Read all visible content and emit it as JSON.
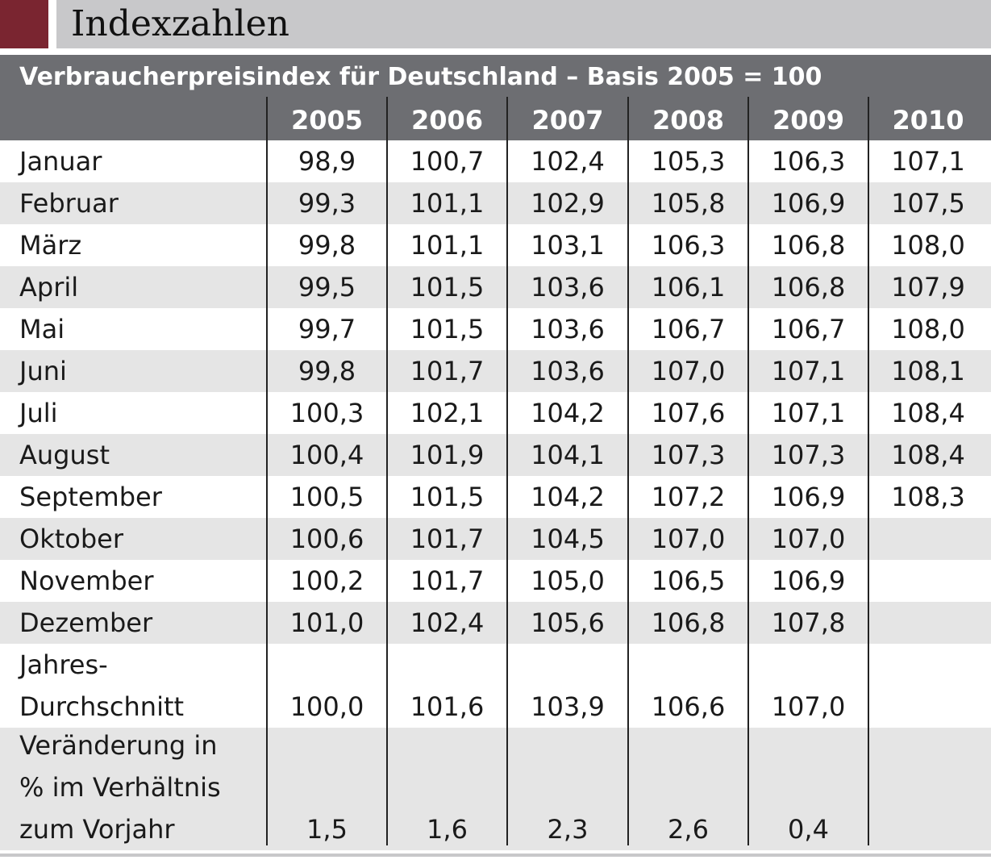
{
  "title": "Indexzahlen",
  "colors": {
    "accent": "#7a2530",
    "title_bar": "#c8c8ca",
    "header": "#6d6e72",
    "row_shade": "#e5e5e5"
  },
  "table": {
    "caption": "Verbraucherpreisindex für Deutschland – Basis 2005 = 100",
    "years": [
      "2005",
      "2006",
      "2007",
      "2008",
      "2009",
      "2010"
    ],
    "rows": [
      {
        "label": "Januar",
        "values": [
          "98,9",
          "100,7",
          "102,4",
          "105,3",
          "106,3",
          "107,1"
        ]
      },
      {
        "label": "Februar",
        "values": [
          "99,3",
          "101,1",
          "102,9",
          "105,8",
          "106,9",
          "107,5"
        ]
      },
      {
        "label": "März",
        "values": [
          "99,8",
          "101,1",
          "103,1",
          "106,3",
          "106,8",
          "108,0"
        ]
      },
      {
        "label": "April",
        "values": [
          "99,5",
          "101,5",
          "103,6",
          "106,1",
          "106,8",
          "107,9"
        ]
      },
      {
        "label": "Mai",
        "values": [
          "99,7",
          "101,5",
          "103,6",
          "106,7",
          "106,7",
          "108,0"
        ]
      },
      {
        "label": "Juni",
        "values": [
          "99,8",
          "101,7",
          "103,6",
          "107,0",
          "107,1",
          "108,1"
        ]
      },
      {
        "label": "Juli",
        "values": [
          "100,3",
          "102,1",
          "104,2",
          "107,6",
          "107,1",
          "108,4"
        ]
      },
      {
        "label": "August",
        "values": [
          "100,4",
          "101,9",
          "104,1",
          "107,3",
          "107,3",
          "108,4"
        ]
      },
      {
        "label": "September",
        "values": [
          "100,5",
          "101,5",
          "104,2",
          "107,2",
          "106,9",
          "108,3"
        ]
      },
      {
        "label": "Oktober",
        "values": [
          "100,6",
          "101,7",
          "104,5",
          "107,0",
          "107,0",
          ""
        ]
      },
      {
        "label": "November",
        "values": [
          "100,2",
          "101,7",
          "105,0",
          "106,5",
          "106,9",
          ""
        ]
      },
      {
        "label": "Dezember",
        "values": [
          "101,0",
          "102,4",
          "105,6",
          "106,8",
          "107,8",
          ""
        ]
      },
      {
        "label": "Jahres-\nDurchschnitt",
        "values": [
          "100,0",
          "101,6",
          "103,9",
          "106,6",
          "107,0",
          ""
        ]
      },
      {
        "label": "Veränderung in\n% im Verhältnis\nzum Vorjahr",
        "values": [
          "1,5",
          "1,6",
          "2,3",
          "2,6",
          "0,4",
          ""
        ]
      }
    ]
  }
}
